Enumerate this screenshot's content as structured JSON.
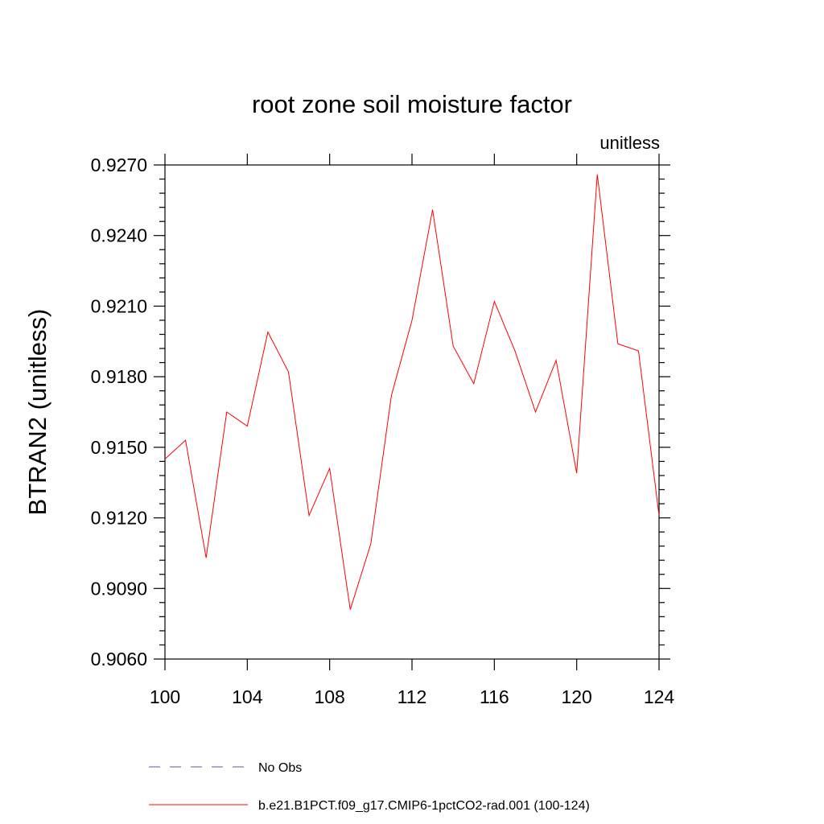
{
  "chart_data": {
    "type": "line",
    "title": "root zone soil moisture factor",
    "units_label": "unitless",
    "ylabel": "BTRAN2  (unitless)",
    "xlabel": "",
    "xlim": [
      100,
      124
    ],
    "ylim": [
      0.906,
      0.927
    ],
    "x_ticks": [
      "100",
      "104",
      "108",
      "112",
      "116",
      "120",
      "124"
    ],
    "y_ticks": [
      "0.9060",
      "0.9090",
      "0.9120",
      "0.9150",
      "0.9180",
      "0.9210",
      "0.9240",
      "0.9270"
    ],
    "grid": false,
    "x": [
      100,
      101,
      102,
      103,
      104,
      105,
      106,
      107,
      108,
      109,
      110,
      111,
      112,
      113,
      114,
      115,
      116,
      117,
      118,
      119,
      120,
      121,
      122,
      123,
      124
    ],
    "series": [
      {
        "name": "b.e21.B1PCT.f09_g17.CMIP6-1pctCO2-rad.001 (100-124)",
        "color": "#ff0000",
        "style": "solid",
        "values": [
          0.9145,
          0.9153,
          0.9103,
          0.9165,
          0.9159,
          0.9199,
          0.9182,
          0.9121,
          0.9141,
          0.9081,
          0.9109,
          0.9172,
          0.9204,
          0.9251,
          0.9193,
          0.9177,
          0.9212,
          0.9191,
          0.9165,
          0.9187,
          0.9139,
          0.9266,
          0.9194,
          0.9191,
          0.9121
        ]
      }
    ],
    "legend": {
      "placement": "bottom",
      "entries": [
        {
          "label": "No Obs",
          "color": "#5a5aa0",
          "style": "dashed"
        },
        {
          "label": "b.e21.B1PCT.f09_g17.CMIP6-1pctCO2-rad.001 (100-124)",
          "color": "#ff0000",
          "style": "solid"
        }
      ]
    }
  }
}
